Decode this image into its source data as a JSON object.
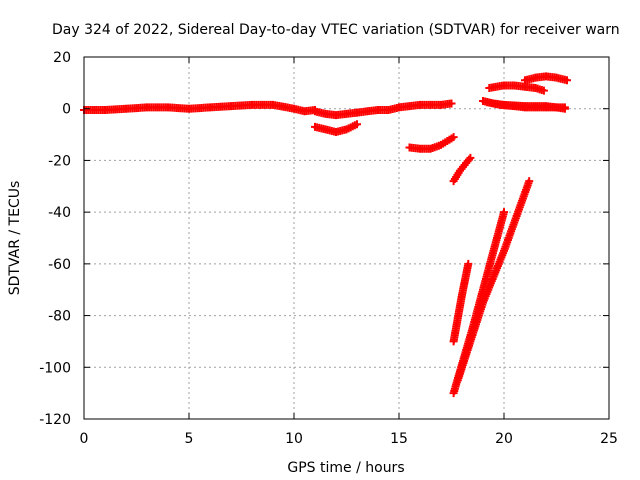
{
  "chart_data": {
    "type": "scatter",
    "title": "Day 324 of 2022, Sidereal Day-to-day VTEC variation (SDTVAR) for receiver warn",
    "xlabel": "GPS time / hours",
    "ylabel": "SDTVAR / TECUs",
    "xlim": [
      0,
      25
    ],
    "ylim": [
      -120,
      20
    ],
    "xticks": [
      "0",
      "5",
      "10",
      "15",
      "20",
      "25"
    ],
    "yticks": [
      "-120",
      "-100",
      "-80",
      "-60",
      "-40",
      "-20",
      "0",
      "20"
    ],
    "grid": true,
    "color": "#ff0000",
    "marker": "+",
    "series": [
      {
        "x": [
          0.0,
          1.0,
          2.0,
          3.0,
          4.0,
          5.0,
          6.0,
          7.0,
          8.0,
          9.0,
          10.0,
          10.5,
          11.0
        ],
        "y": [
          -0.5,
          -0.5,
          0.0,
          0.5,
          0.5,
          0.0,
          0.5,
          1.0,
          1.5,
          1.5,
          0.0,
          -1.0,
          -0.5
        ]
      },
      {
        "x": [
          11.0,
          11.5,
          12.0,
          12.5,
          13.0
        ],
        "y": [
          -1.0,
          -2.0,
          -2.5,
          -2.0,
          -1.5
        ]
      },
      {
        "x": [
          13.0,
          13.5,
          14.0,
          14.5,
          15.0,
          15.5,
          16.0,
          17.0,
          17.5
        ],
        "y": [
          -1.5,
          -1.0,
          -0.5,
          -0.5,
          0.5,
          1.0,
          1.5,
          1.5,
          2.0
        ]
      },
      {
        "x": [
          11.0,
          11.5,
          12.0,
          12.5,
          13.0
        ],
        "y": [
          -7.0,
          -8.0,
          -9.0,
          -8.0,
          -6.0
        ]
      },
      {
        "x": [
          15.5,
          16.0,
          16.5,
          17.0,
          17.6
        ],
        "y": [
          -15.0,
          -15.5,
          -15.5,
          -14.0,
          -11.0
        ]
      },
      {
        "x": [
          17.6,
          17.9,
          18.2,
          18.4
        ],
        "y": [
          -28.0,
          -24.0,
          -21.0,
          -19.0
        ]
      },
      {
        "x": [
          17.6,
          18.0,
          18.3
        ],
        "y": [
          -90.0,
          -72.0,
          -60.0
        ]
      },
      {
        "x": [
          17.6,
          18.5,
          19.5,
          20.0
        ],
        "y": [
          -110.0,
          -85.0,
          -55.0,
          -40.0
        ]
      },
      {
        "x": [
          17.8,
          19.0,
          20.0,
          21.2
        ],
        "y": [
          -105.0,
          -75.0,
          -55.0,
          -28.0
        ]
      },
      {
        "x": [
          19.2,
          19.8,
          20.5,
          21.0,
          21.5,
          22.0,
          22.5,
          22.9
        ],
        "y": [
          2.5,
          1.5,
          1.0,
          0.5,
          0.5,
          0.5,
          0.5,
          0.0
        ]
      },
      {
        "x": [
          19.0,
          19.5,
          20.0,
          21.0,
          21.5,
          22.0,
          22.5,
          22.9
        ],
        "y": [
          3.0,
          2.0,
          1.5,
          1.0,
          1.0,
          1.0,
          0.5,
          0.5
        ]
      },
      {
        "x": [
          19.3,
          20.0,
          20.5,
          21.0,
          21.5,
          21.9
        ],
        "y": [
          8.0,
          9.0,
          9.0,
          8.5,
          8.0,
          7.0
        ]
      },
      {
        "x": [
          21.0,
          21.5,
          22.0,
          22.5,
          23.0
        ],
        "y": [
          11.0,
          12.0,
          12.5,
          12.0,
          11.0
        ]
      }
    ]
  }
}
